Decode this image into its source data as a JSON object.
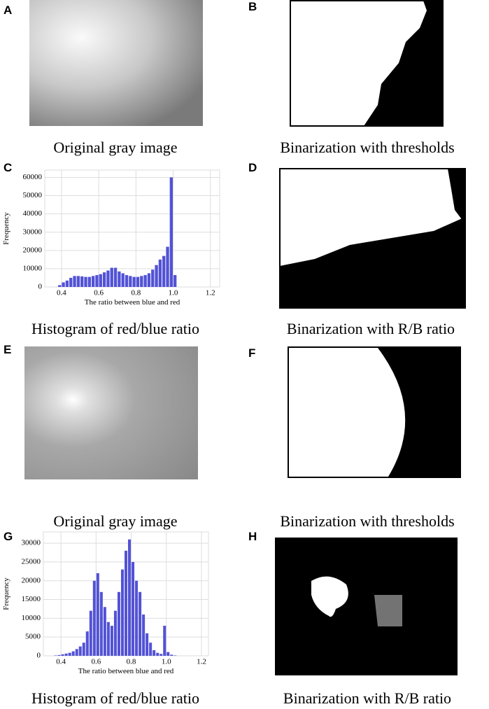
{
  "panels": [
    {
      "label": "A",
      "caption": "Original gray image"
    },
    {
      "label": "B",
      "caption": "Binarization with thresholds"
    },
    {
      "label": "C",
      "caption": "Histogram of red/blue ratio"
    },
    {
      "label": "D",
      "caption": "Binarization with R/B ratio"
    },
    {
      "label": "E",
      "caption": "Original gray image"
    },
    {
      "label": "F",
      "caption": "Binarization with thresholds"
    },
    {
      "label": "G",
      "caption": "Histogram of red/blue ratio"
    },
    {
      "label": "H",
      "caption": "Binarization with R/B ratio"
    }
  ],
  "chart_data": [
    {
      "type": "histogram",
      "xlabel": "The ratio between blue and red",
      "ylabel": "Frequency",
      "color": "#5252d6",
      "bins": [
        0.38,
        0.4,
        0.42,
        0.44,
        0.46,
        0.48,
        0.5,
        0.52,
        0.54,
        0.56,
        0.58,
        0.6,
        0.62,
        0.64,
        0.66,
        0.68,
        0.7,
        0.72,
        0.74,
        0.76,
        0.78,
        0.8,
        0.82,
        0.84,
        0.86,
        0.88,
        0.9,
        0.92,
        0.94,
        0.96,
        0.98,
        1.0,
        1.02
      ],
      "counts": [
        1000,
        2500,
        3500,
        5000,
        6000,
        6000,
        5800,
        5500,
        5500,
        6000,
        6500,
        7000,
        8000,
        9000,
        10500,
        10500,
        8500,
        7500,
        6500,
        6000,
        5500,
        5500,
        6000,
        6500,
        7500,
        9500,
        12000,
        15000,
        17000,
        22000,
        60000,
        6500
      ],
      "xlim": [
        0.31,
        1.25
      ],
      "ylim": [
        0,
        64000
      ],
      "xticks": [
        0.4,
        0.6,
        0.8,
        {
          "value": 1,
          "label": "1.0"
        },
        1.2
      ],
      "yticks": [
        0,
        10000,
        20000,
        30000,
        40000,
        50000,
        60000
      ],
      "grid": true
    },
    {
      "type": "histogram",
      "xlabel": "The ratio between blue and red",
      "ylabel": "Frequency",
      "color": "#5252d6",
      "bins": [
        0.36,
        0.38,
        0.4,
        0.42,
        0.44,
        0.46,
        0.48,
        0.5,
        0.52,
        0.54,
        0.56,
        0.58,
        0.6,
        0.62,
        0.64,
        0.66,
        0.68,
        0.7,
        0.72,
        0.74,
        0.76,
        0.78,
        0.8,
        0.82,
        0.84,
        0.86,
        0.88,
        0.9,
        0.92,
        0.94,
        0.96,
        0.98,
        1.0,
        1.02,
        1.04,
        1.06
      ],
      "counts": [
        100,
        200,
        400,
        600,
        800,
        1200,
        1800,
        2500,
        3500,
        6500,
        12000,
        20000,
        22000,
        17000,
        13000,
        9000,
        8000,
        12000,
        17000,
        23000,
        28000,
        31000,
        25000,
        20000,
        17000,
        11000,
        6000,
        3500,
        1500,
        800,
        500,
        8000,
        1000,
        300,
        100
      ],
      "xlim": [
        0.3,
        1.24
      ],
      "ylim": [
        0,
        33000
      ],
      "xticks": [
        0.4,
        0.6,
        0.8,
        {
          "value": 1,
          "label": "1.0"
        },
        1.2
      ],
      "yticks": [
        0,
        5000,
        10000,
        15000,
        20000,
        25000,
        30000
      ],
      "grid": true
    }
  ]
}
